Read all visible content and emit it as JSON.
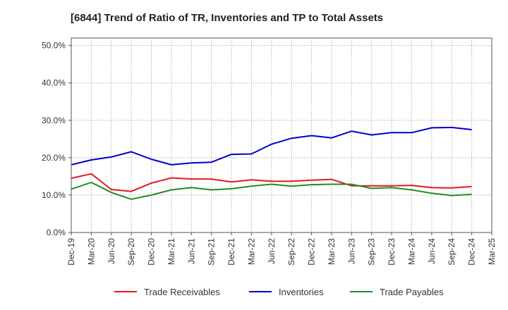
{
  "chart_data": {
    "type": "line",
    "title": "[6844]  Trend of Ratio of TR, Inventories and TP to Total Assets",
    "xlabel": "",
    "ylabel": "",
    "x": [
      "Dec-19",
      "Mar-20",
      "Jun-20",
      "Sep-20",
      "Dec-20",
      "Mar-21",
      "Jun-21",
      "Sep-21",
      "Dec-21",
      "Mar-22",
      "Jun-22",
      "Sep-22",
      "Dec-22",
      "Mar-23",
      "Jun-23",
      "Sep-23",
      "Dec-23",
      "Mar-24",
      "Jun-24",
      "Sep-24",
      "Dec-24"
    ],
    "x_tick_labels": [
      "Dec-19",
      "Mar-20",
      "Jun-20",
      "Sep-20",
      "Dec-20",
      "Mar-21",
      "Jun-21",
      "Sep-21",
      "Dec-21",
      "Mar-22",
      "Jun-22",
      "Sep-22",
      "Dec-22",
      "Mar-23",
      "Jun-23",
      "Sep-23",
      "Dec-23",
      "Mar-24",
      "Jun-24",
      "Sep-24",
      "Dec-24",
      "Mar-25"
    ],
    "ylim": [
      0,
      52
    ],
    "y_ticks": [
      0,
      10,
      20,
      30,
      40,
      50
    ],
    "y_tick_labels": [
      "0.0%",
      "10.0%",
      "20.0%",
      "30.0%",
      "40.0%",
      "50.0%"
    ],
    "grid": true,
    "legend_position": "bottom",
    "series": [
      {
        "name": "Trade Receivables",
        "color": "#e41a1c",
        "values": [
          14.5,
          15.7,
          11.5,
          11.0,
          13.2,
          14.6,
          14.3,
          14.3,
          13.5,
          14.1,
          13.7,
          13.7,
          14.0,
          14.2,
          12.5,
          12.5,
          12.5,
          12.6,
          12.0,
          11.9,
          12.3
        ]
      },
      {
        "name": "Inventories",
        "color": "#0000cc",
        "values": [
          18.1,
          19.4,
          20.2,
          21.6,
          19.6,
          18.1,
          18.6,
          18.8,
          20.9,
          21.0,
          23.6,
          25.2,
          25.9,
          25.3,
          27.1,
          26.1,
          26.7,
          26.7,
          28.0,
          28.1,
          27.5
        ]
      },
      {
        "name": "Trade Payables",
        "color": "#228b22",
        "values": [
          11.6,
          13.4,
          10.7,
          8.9,
          10.0,
          11.4,
          12.0,
          11.4,
          11.7,
          12.4,
          12.9,
          12.4,
          12.8,
          12.9,
          12.9,
          11.8,
          12.0,
          11.4,
          10.5,
          9.9,
          10.2
        ]
      }
    ]
  }
}
